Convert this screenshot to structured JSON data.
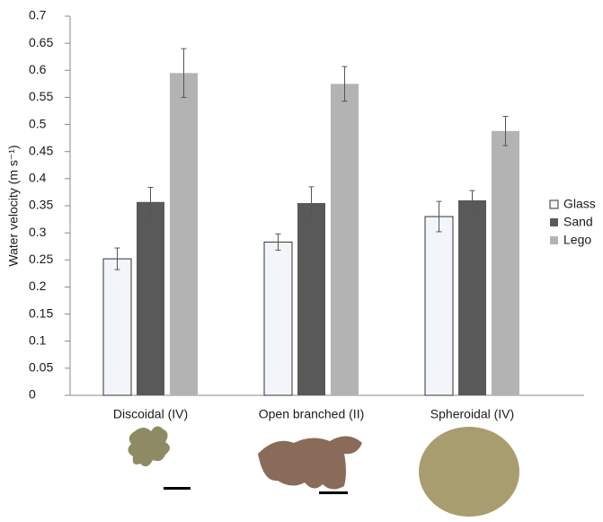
{
  "chart_data": {
    "type": "bar",
    "y_label": "Water velocity (m s⁻¹)",
    "categories": [
      "Discoidal (IV)",
      "Open branched (II)",
      "Spheroidal (IV)"
    ],
    "series": [
      {
        "name": "Glass",
        "color": "#f2f5f9",
        "values": [
          0.252,
          0.283,
          0.33
        ],
        "errors": [
          0.02,
          0.015,
          0.028
        ]
      },
      {
        "name": "Sand",
        "color": "#595959",
        "values": [
          0.357,
          0.355,
          0.36
        ],
        "errors": [
          0.027,
          0.03,
          0.018
        ]
      },
      {
        "name": "Lego",
        "color": "#b3b3b3",
        "values": [
          0.595,
          0.575,
          0.488
        ],
        "errors": [
          0.045,
          0.032,
          0.027
        ]
      }
    ],
    "ylim": [
      0,
      0.7
    ],
    "yticks": [
      0,
      0.05,
      0.1,
      0.15,
      0.2,
      0.25,
      0.3,
      0.35,
      0.4,
      0.45,
      0.5,
      0.55,
      0.6,
      0.65,
      0.7
    ],
    "legend": "right"
  }
}
